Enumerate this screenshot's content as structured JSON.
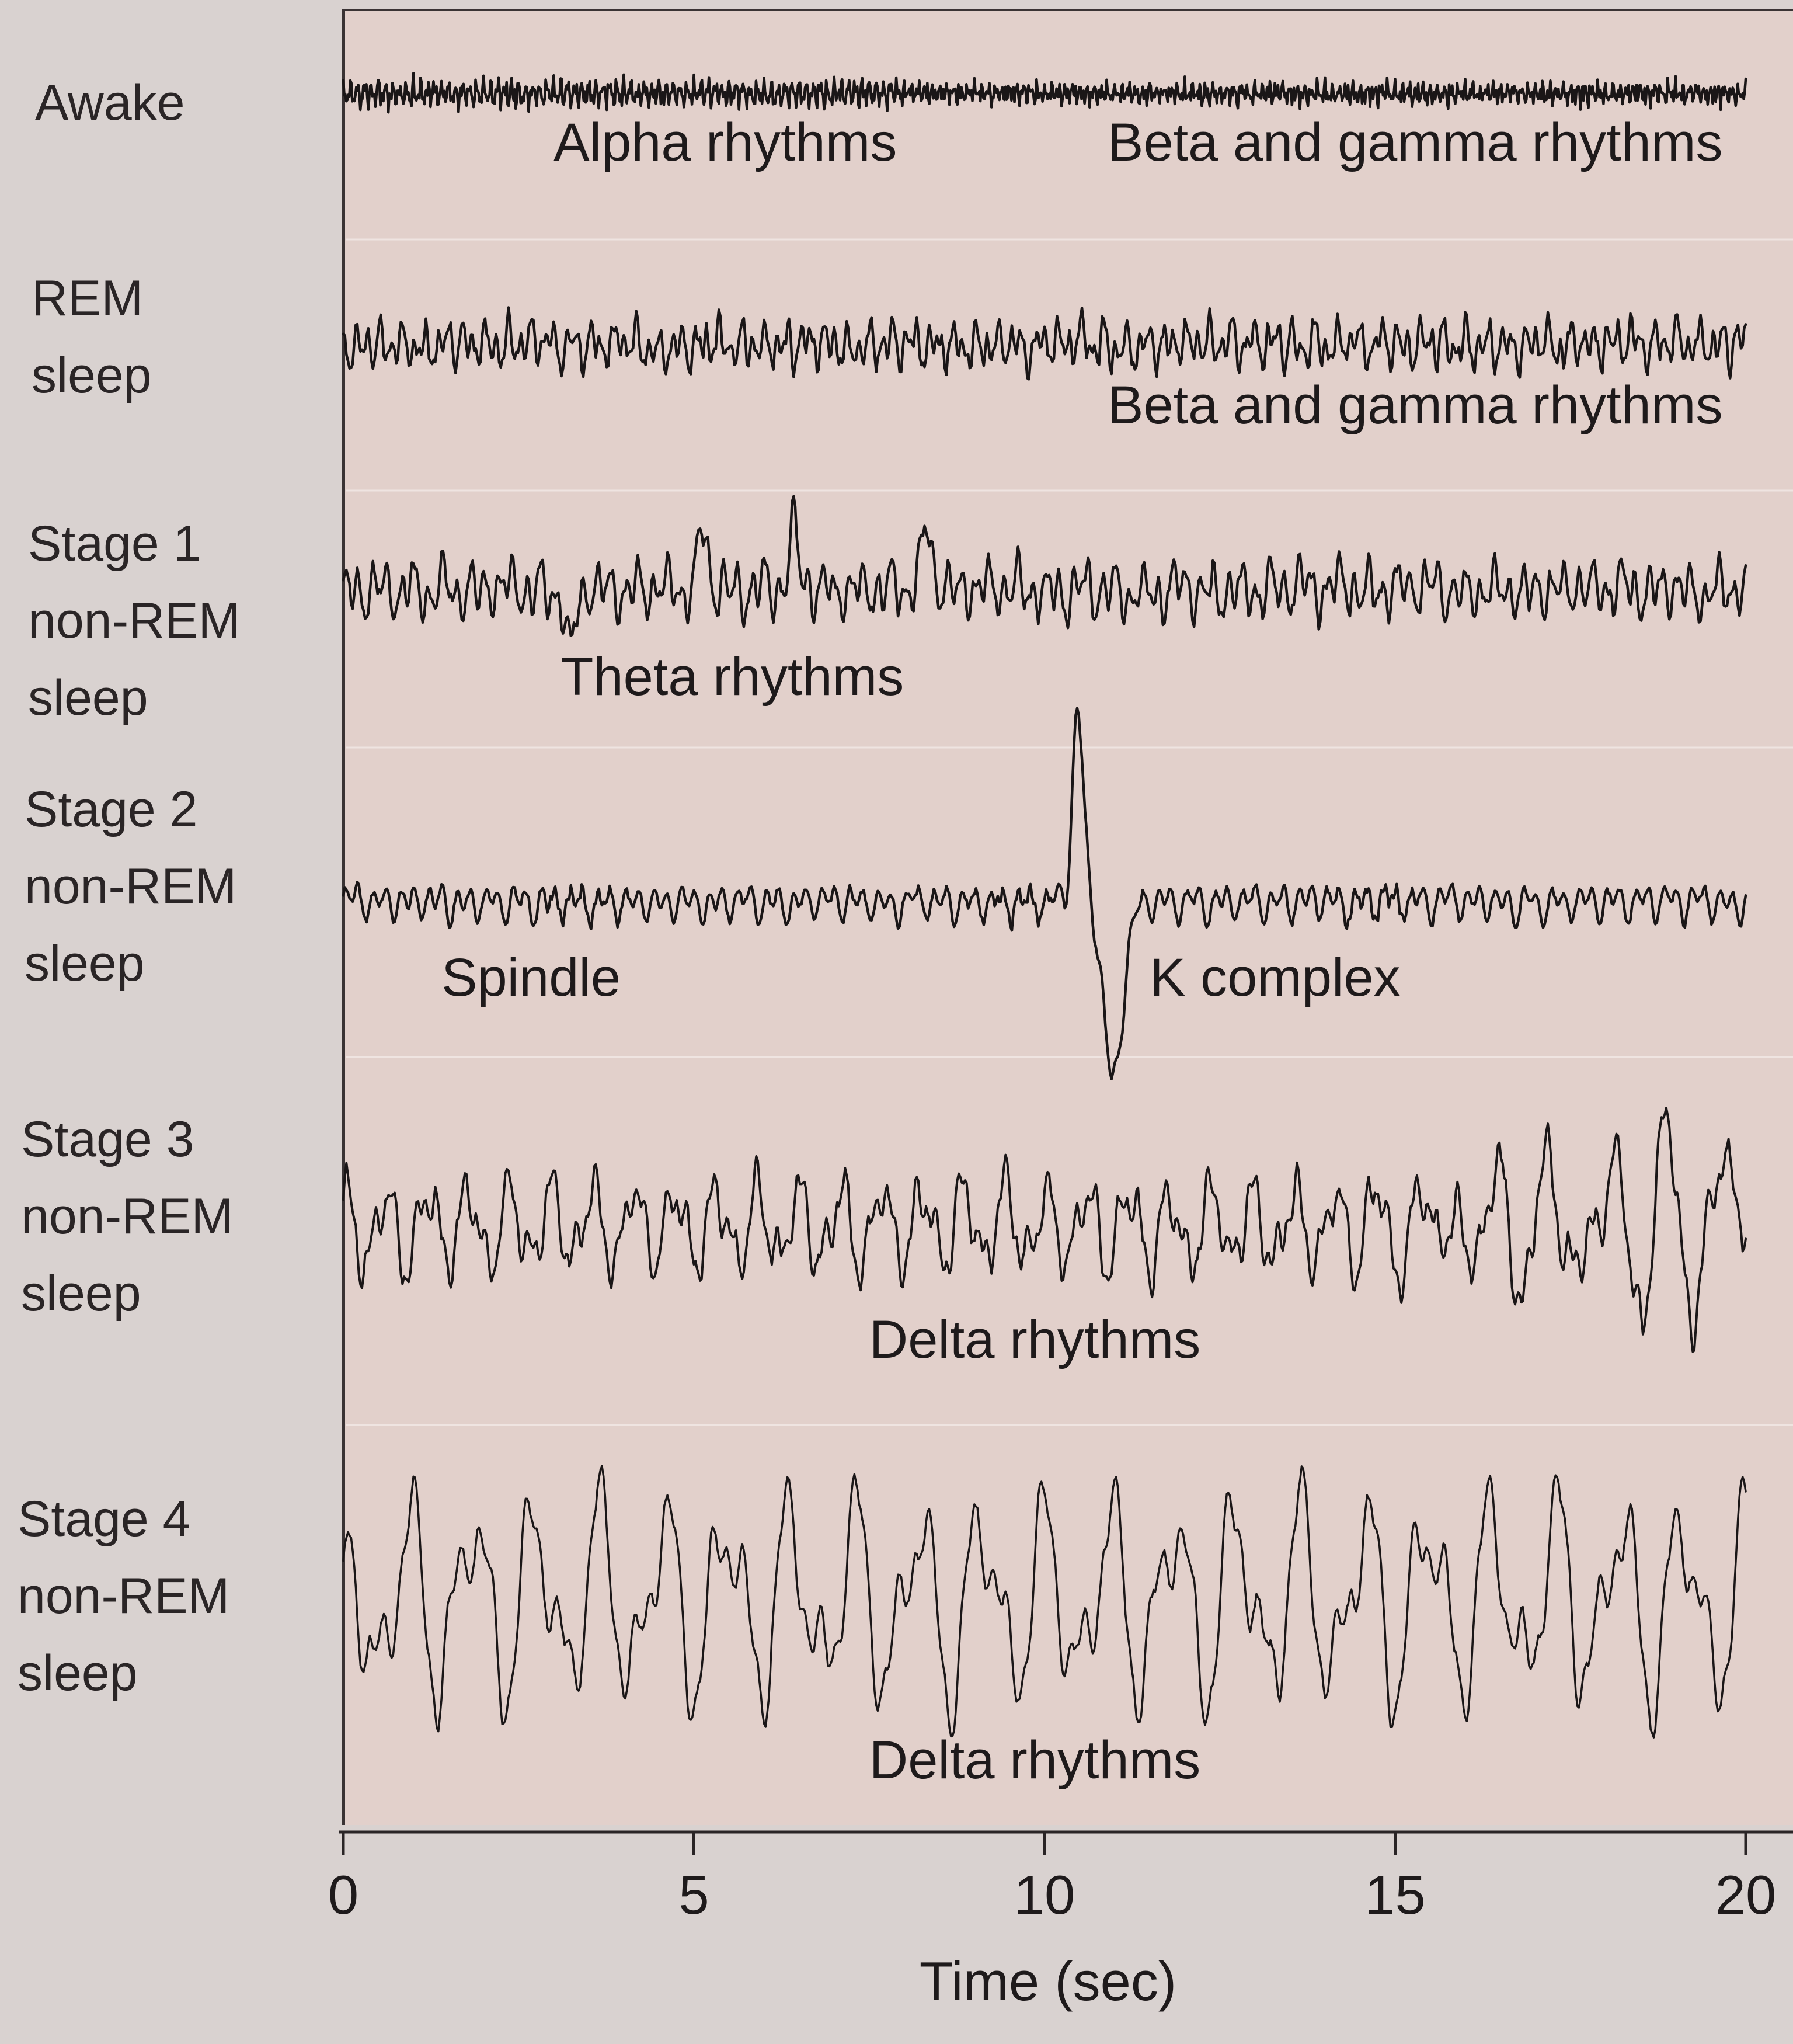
{
  "chart_data": {
    "type": "line",
    "title": "",
    "xlabel": "Time (sec)",
    "ylabel": "",
    "xlim": [
      0,
      20
    ],
    "x_ticks": [
      "0",
      "5",
      "10",
      "15",
      "20"
    ],
    "grid": false,
    "series": [
      {
        "name": "Awake",
        "label_lines": [
          "Awake"
        ],
        "annotations": [
          {
            "text": "Alpha rhythms",
            "x": 3.0
          },
          {
            "text": "Beta and gamma rhythms",
            "x": 10.9
          }
        ],
        "waveform": {
          "style": "fast-low-amplitude",
          "amplitude": 0.35,
          "dominant_hz": 10,
          "seed": 11
        },
        "color": "#1a1617"
      },
      {
        "name": "REM sleep",
        "label_lines": [
          "REM",
          "sleep"
        ],
        "annotations": [
          {
            "text": "Beta and gamma rhythms",
            "x": 10.9
          }
        ],
        "waveform": {
          "style": "mixed-frequency",
          "amplitude": 0.7,
          "dominant_hz": 6,
          "seed": 23
        },
        "color": "#1a1617"
      },
      {
        "name": "Stage 1 non-REM sleep",
        "label_lines": [
          "Stage 1",
          "non-REM",
          "sleep"
        ],
        "annotations": [
          {
            "text": "Theta rhythms",
            "x": 3.1
          }
        ],
        "waveform": {
          "style": "theta",
          "amplitude": 0.75,
          "dominant_hz": 5,
          "seed": 37
        },
        "color": "#1a1617"
      },
      {
        "name": "Stage 2 non-REM sleep",
        "label_lines": [
          "Stage 2",
          "non-REM",
          "sleep"
        ],
        "annotations": [
          {
            "text": "Spindle",
            "x": 1.4
          },
          {
            "text": "K complex",
            "x": 11.5
          }
        ],
        "waveform": {
          "style": "spindle-kcomplex",
          "amplitude": 0.6,
          "dominant_hz": 5,
          "seed": 41,
          "k_complex_at": 10.5
        },
        "color": "#1a1617"
      },
      {
        "name": "Stage 3 non-REM sleep",
        "label_lines": [
          "Stage 3",
          "non-REM",
          "sleep"
        ],
        "annotations": [
          {
            "text": "Delta rhythms",
            "x": 7.5
          }
        ],
        "waveform": {
          "style": "delta-mixed",
          "amplitude": 1.4,
          "dominant_hz": 2,
          "seed": 53
        },
        "color": "#1a1617"
      },
      {
        "name": "Stage 4 non-REM sleep",
        "label_lines": [
          "Stage 4",
          "non-REM",
          "sleep"
        ],
        "annotations": [
          {
            "text": "Delta rhythms",
            "x": 7.5
          }
        ],
        "waveform": {
          "style": "delta",
          "amplitude": 2.0,
          "dominant_hz": 1,
          "seed": 67
        },
        "color": "#1a1617"
      }
    ]
  },
  "colors": {
    "page_background": "#d9d2d0",
    "plot_background": "#e2d0cb",
    "plot_border": "#3a3334",
    "trace": "#1a1617"
  }
}
